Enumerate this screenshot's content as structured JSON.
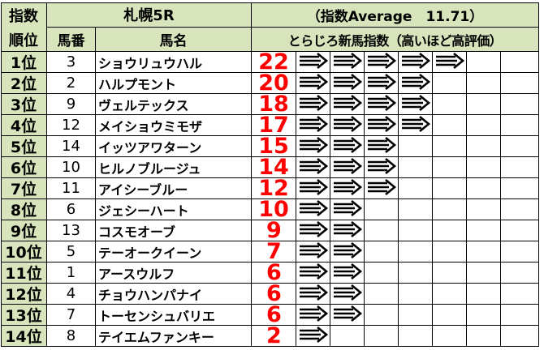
{
  "header": {
    "rank_top": "指数",
    "rank_bottom": "順位",
    "race": "札幌5R",
    "average": "（指数Average　11.71）",
    "col_number": "馬番",
    "col_name": "馬名",
    "col_index": "とらじろ新馬指数（高いほど高評価）"
  },
  "rows": [
    {
      "rank": "1位",
      "number": "3",
      "name": "ショウリュウハル",
      "score": "22",
      "arrows": 5
    },
    {
      "rank": "2位",
      "number": "2",
      "name": "ハルプモント",
      "score": "20",
      "arrows": 4
    },
    {
      "rank": "3位",
      "number": "9",
      "name": "ヴェルテックス",
      "score": "18",
      "arrows": 4
    },
    {
      "rank": "4位",
      "number": "12",
      "name": "メイショウミモザ",
      "score": "17",
      "arrows": 4
    },
    {
      "rank": "5位",
      "number": "14",
      "name": "イッツアワターン",
      "score": "15",
      "arrows": 3
    },
    {
      "rank": "6位",
      "number": "10",
      "name": "ヒルノブルージュ",
      "score": "14",
      "arrows": 3
    },
    {
      "rank": "7位",
      "number": "11",
      "name": "アイシーブルー",
      "score": "12",
      "arrows": 3
    },
    {
      "rank": "8位",
      "number": "6",
      "name": "ジェシーハート",
      "score": "10",
      "arrows": 2
    },
    {
      "rank": "9位",
      "number": "13",
      "name": "コスモオーブ",
      "score": "9",
      "arrows": 2
    },
    {
      "rank": "10位",
      "number": "5",
      "name": "テーオークイーン",
      "score": "7",
      "arrows": 2
    },
    {
      "rank": "11位",
      "number": "1",
      "name": "アースウルフ",
      "score": "6",
      "arrows": 2
    },
    {
      "rank": "12位",
      "number": "4",
      "name": "チョウハンパナイ",
      "score": "6",
      "arrows": 2
    },
    {
      "rank": "13位",
      "number": "7",
      "name": "トーセンシュバリエ",
      "score": "6",
      "arrows": 2
    },
    {
      "rank": "14位",
      "number": "8",
      "name": "テイエムファンキー",
      "score": "2",
      "arrows": 1
    }
  ],
  "colors": {
    "header_bg": "#d8e4bc",
    "score": "#ff0000",
    "grid": "#000000"
  },
  "icon": "right-arrow-icon"
}
